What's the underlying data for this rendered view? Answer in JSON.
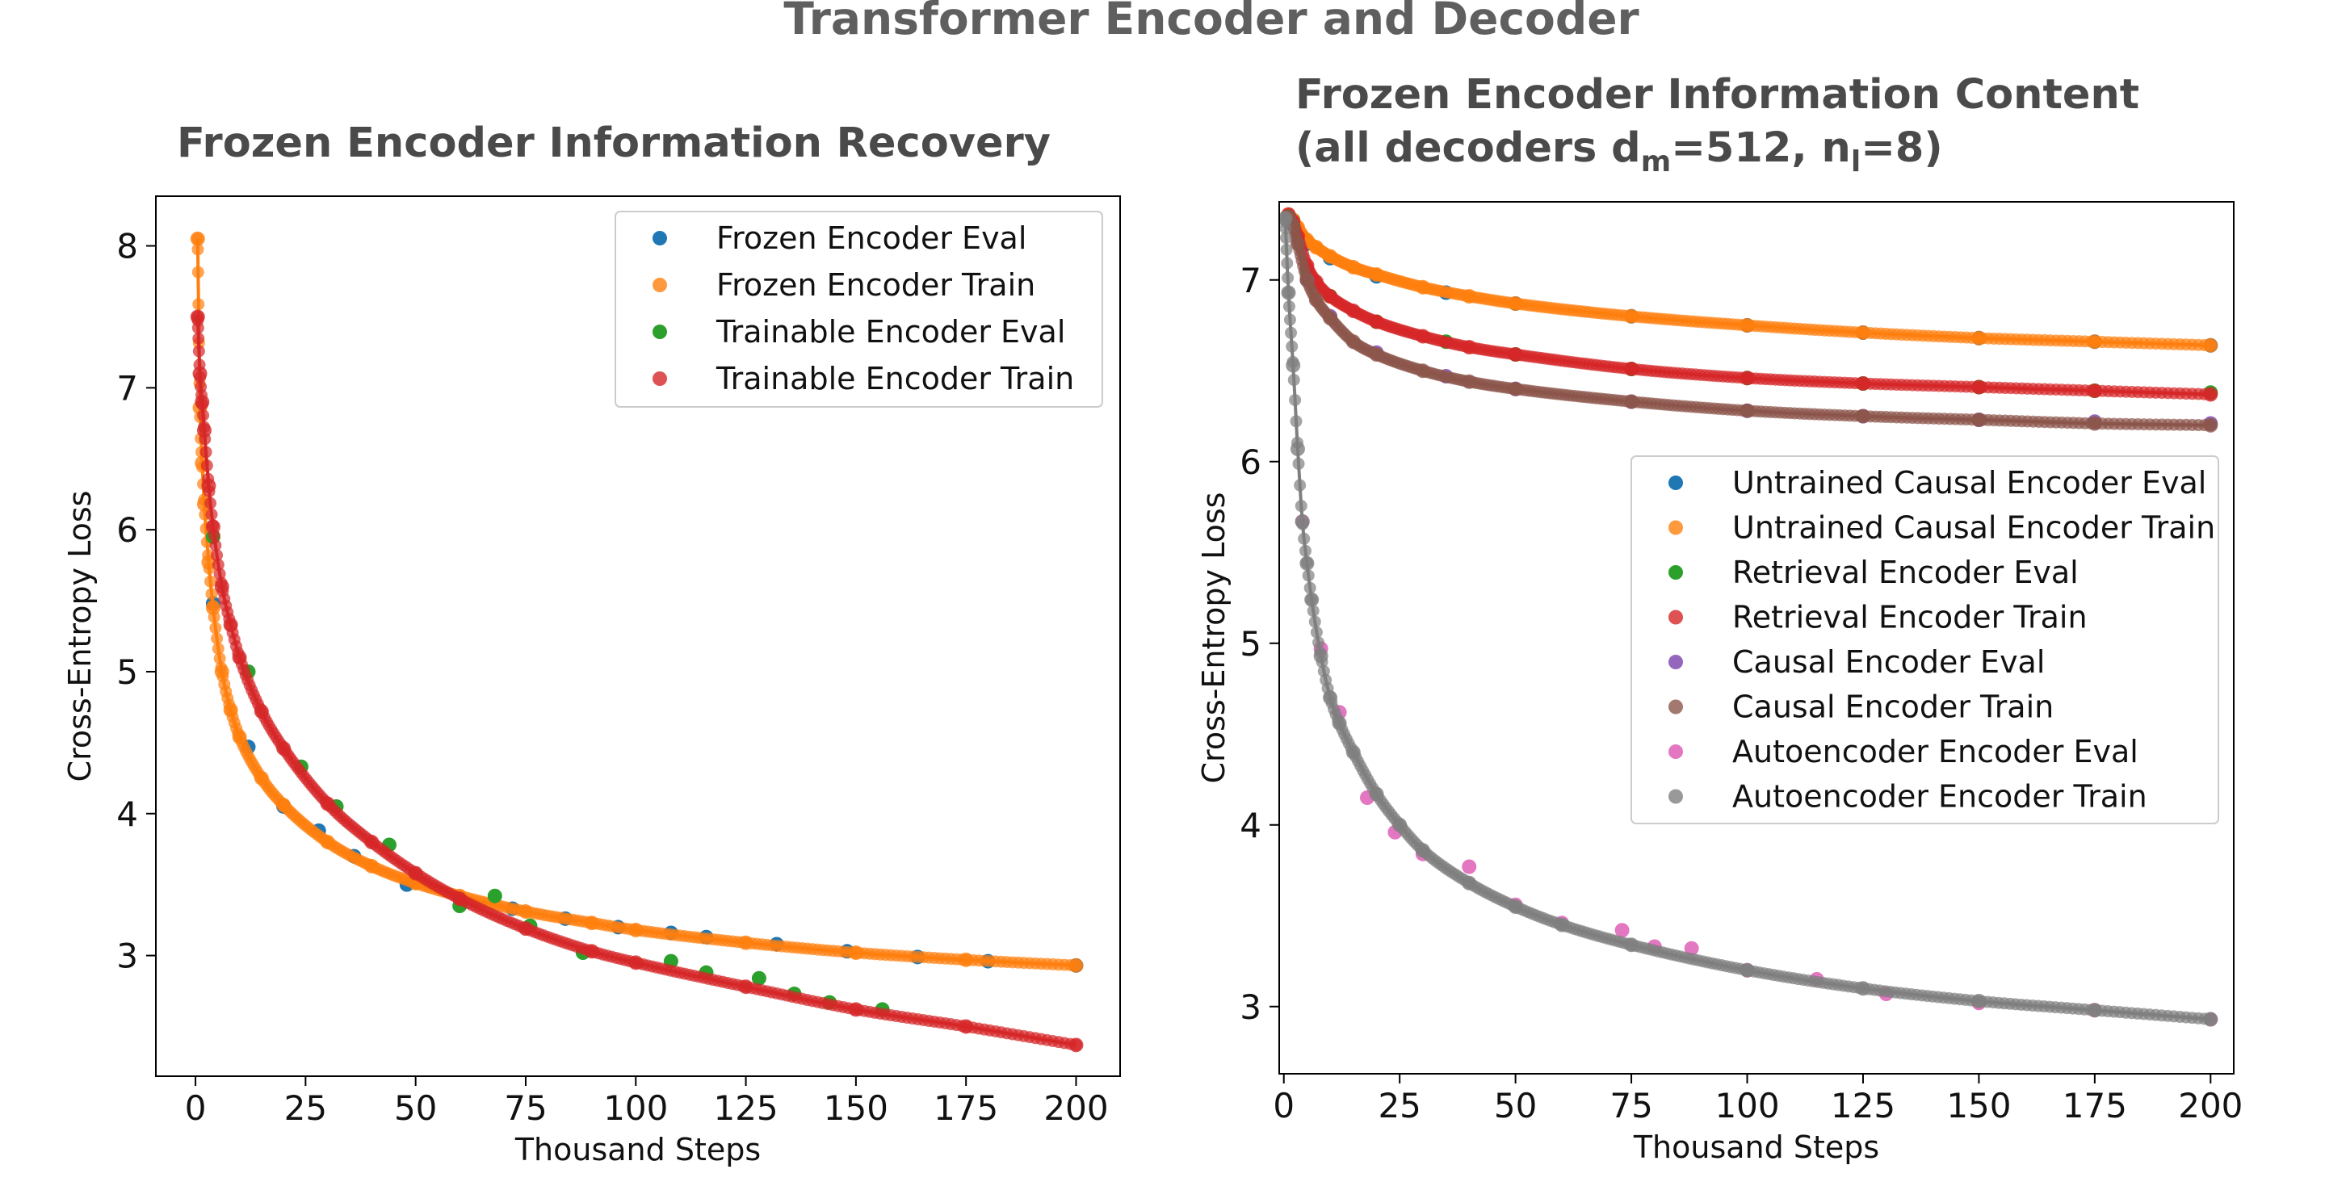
{
  "figure": {
    "suptitle": "Transformer Encoder and Decoder"
  },
  "chart_data": [
    {
      "type": "line",
      "title": "Frozen Encoder Information Recovery",
      "xlabel": "Thousand Steps",
      "ylabel": "Cross-Entropy Loss",
      "xlim": [
        -9,
        210
      ],
      "ylim": [
        2.15,
        8.35
      ],
      "xticks": [
        0,
        25,
        50,
        75,
        100,
        125,
        150,
        175,
        200
      ],
      "yticks": [
        3,
        4,
        5,
        6,
        7,
        8
      ],
      "grid": false,
      "legend_position": "upper-right",
      "series": [
        {
          "name": "Frozen Encoder Eval",
          "color": "#1f77b4",
          "points_only": true,
          "x": [
            4,
            12,
            20,
            28,
            36,
            48,
            60,
            72,
            84,
            96,
            108,
            116,
            132,
            148,
            164,
            180,
            200
          ],
          "y": [
            5.48,
            4.47,
            4.05,
            3.88,
            3.7,
            3.5,
            3.4,
            3.33,
            3.26,
            3.2,
            3.16,
            3.13,
            3.08,
            3.03,
            2.99,
            2.96,
            2.93
          ]
        },
        {
          "name": "Frozen Encoder Train",
          "color": "#ff7f0e",
          "points_only": false,
          "x": [
            0.5,
            1,
            1.5,
            2,
            3,
            4,
            6,
            8,
            10,
            15,
            20,
            30,
            40,
            50,
            60,
            75,
            90,
            100,
            125,
            150,
            175,
            200
          ],
          "y": [
            8.05,
            6.86,
            6.47,
            6.18,
            5.77,
            5.45,
            5.0,
            4.73,
            4.54,
            4.25,
            4.06,
            3.8,
            3.63,
            3.51,
            3.42,
            3.31,
            3.23,
            3.18,
            3.09,
            3.02,
            2.97,
            2.93
          ]
        },
        {
          "name": "Trainable Encoder Eval",
          "color": "#2ca02c",
          "points_only": true,
          "x": [
            4,
            12,
            24,
            32,
            44,
            60,
            68,
            76,
            88,
            108,
            116,
            128,
            136,
            144,
            156
          ],
          "y": [
            5.95,
            5.0,
            4.33,
            4.05,
            3.78,
            3.35,
            3.42,
            3.21,
            3.02,
            2.96,
            2.88,
            2.84,
            2.73,
            2.67,
            2.62
          ]
        },
        {
          "name": "Trainable Encoder Train",
          "color": "#d62728",
          "points_only": false,
          "x": [
            0.5,
            1,
            1.5,
            2,
            3,
            4,
            6,
            8,
            10,
            15,
            20,
            30,
            40,
            50,
            60,
            75,
            90,
            100,
            125,
            150,
            175,
            200
          ],
          "y": [
            7.5,
            7.1,
            6.9,
            6.7,
            6.31,
            6.02,
            5.6,
            5.33,
            5.1,
            4.72,
            4.46,
            4.07,
            3.8,
            3.58,
            3.4,
            3.19,
            3.03,
            2.95,
            2.78,
            2.62,
            2.5,
            2.37
          ]
        }
      ]
    },
    {
      "type": "line",
      "title": [
        "Frozen Encoder Information Content",
        "(all decoders d",
        "m",
        "=512, n",
        "l",
        "=8)"
      ],
      "xlabel": "Thousand Steps",
      "ylabel": "Cross-Entropy Loss",
      "xlim": [
        -1,
        205
      ],
      "ylim": [
        2.63,
        7.43
      ],
      "xticks": [
        0,
        25,
        50,
        75,
        100,
        125,
        150,
        175,
        200
      ],
      "yticks": [
        3,
        4,
        5,
        6,
        7
      ],
      "grid": false,
      "legend_position": "center-right",
      "series": [
        {
          "name": "Untrained Causal Encoder Eval",
          "color": "#1f77b4",
          "points_only": true,
          "x": [
            2,
            5,
            10,
            20,
            35,
            50,
            75,
            100,
            125,
            150,
            175,
            200
          ],
          "y": [
            7.33,
            7.2,
            7.12,
            7.02,
            6.93,
            6.87,
            6.8,
            6.75,
            6.71,
            6.68,
            6.66,
            6.64
          ]
        },
        {
          "name": "Untrained Causal Encoder Train",
          "color": "#ff7f0e",
          "points_only": false,
          "x": [
            1,
            2,
            3,
            5,
            7,
            10,
            15,
            20,
            30,
            40,
            50,
            75,
            100,
            125,
            150,
            175,
            200
          ],
          "y": [
            7.36,
            7.33,
            7.29,
            7.22,
            7.18,
            7.13,
            7.07,
            7.03,
            6.96,
            6.91,
            6.87,
            6.8,
            6.75,
            6.71,
            6.68,
            6.66,
            6.64
          ]
        },
        {
          "name": "Retrieval Encoder Eval",
          "color": "#2ca02c",
          "points_only": true,
          "x": [
            5,
            10,
            20,
            35,
            50,
            75,
            100,
            125,
            150,
            175,
            200
          ],
          "y": [
            7.05,
            6.91,
            6.77,
            6.66,
            6.59,
            6.51,
            6.46,
            6.43,
            6.41,
            6.39,
            6.38
          ]
        },
        {
          "name": "Retrieval Encoder Train",
          "color": "#d62728",
          "points_only": false,
          "x": [
            1,
            2,
            3,
            5,
            7,
            10,
            15,
            20,
            30,
            40,
            50,
            75,
            100,
            125,
            150,
            175,
            200
          ],
          "y": [
            7.36,
            7.32,
            7.24,
            7.08,
            6.99,
            6.91,
            6.83,
            6.77,
            6.69,
            6.63,
            6.59,
            6.51,
            6.46,
            6.43,
            6.41,
            6.39,
            6.37
          ]
        },
        {
          "name": "Causal Encoder Eval",
          "color": "#9467bd",
          "points_only": true,
          "x": [
            5,
            10,
            20,
            35,
            50,
            75,
            100,
            125,
            150,
            175,
            200
          ],
          "y": [
            7.0,
            6.8,
            6.6,
            6.47,
            6.4,
            6.33,
            6.28,
            6.25,
            6.23,
            6.22,
            6.21
          ]
        },
        {
          "name": "Causal Encoder Train",
          "color": "#8c564b",
          "points_only": false,
          "x": [
            1,
            2,
            3,
            5,
            7,
            10,
            15,
            20,
            30,
            40,
            50,
            75,
            100,
            125,
            150,
            175,
            200
          ],
          "y": [
            7.35,
            7.3,
            7.2,
            7.0,
            6.89,
            6.79,
            6.66,
            6.59,
            6.5,
            6.44,
            6.4,
            6.33,
            6.28,
            6.25,
            6.23,
            6.21,
            6.2
          ]
        },
        {
          "name": "Autoencoder Encoder Eval",
          "color": "#e377c2",
          "points_only": true,
          "x": [
            4,
            8,
            12,
            18,
            24,
            30,
            40,
            50,
            60,
            73,
            80,
            88,
            100,
            115,
            130,
            150,
            175,
            200
          ],
          "y": [
            5.67,
            4.97,
            4.62,
            4.15,
            3.96,
            3.84,
            3.77,
            3.56,
            3.46,
            3.42,
            3.33,
            3.32,
            3.2,
            3.15,
            3.07,
            3.02,
            2.98,
            2.93
          ]
        },
        {
          "name": "Autoencoder Encoder Train",
          "color": "#7f7f7f",
          "points_only": false,
          "x": [
            0.3,
            1,
            2,
            3,
            4,
            5,
            6,
            8,
            10,
            12,
            15,
            20,
            25,
            30,
            40,
            50,
            60,
            75,
            100,
            125,
            150,
            175,
            200
          ],
          "y": [
            7.34,
            6.93,
            6.53,
            6.07,
            5.67,
            5.44,
            5.24,
            4.93,
            4.7,
            4.56,
            4.4,
            4.17,
            4.0,
            3.86,
            3.68,
            3.55,
            3.45,
            3.34,
            3.2,
            3.1,
            3.03,
            2.98,
            2.93
          ]
        }
      ]
    }
  ]
}
